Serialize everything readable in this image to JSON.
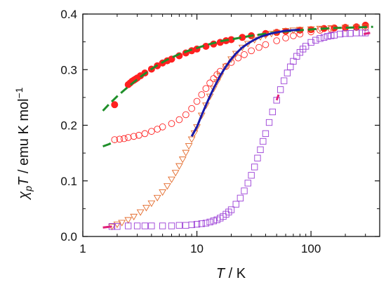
{
  "chart_data": {
    "type": "scatter",
    "title": "",
    "xlabel": {
      "var": "T",
      "unit": " / K"
    },
    "ylabel": {
      "var_main": "χ",
      "var_sub": "p",
      "var_tail": "T",
      "unit": " / emu K mol",
      "unit_sup": "−1"
    },
    "x_scale": "log",
    "xlim": [
      1,
      400
    ],
    "ylim": [
      0.0,
      0.4
    ],
    "x_ticks": [
      1,
      10,
      100
    ],
    "x_tick_labels": [
      "1",
      "10",
      "100"
    ],
    "y_ticks": [
      0.0,
      0.1,
      0.2,
      0.3,
      0.4
    ],
    "y_tick_labels": [
      "0.0",
      "0.1",
      "0.2",
      "0.3",
      "0.4"
    ],
    "grid": false,
    "legend": "none",
    "series": [
      {
        "marker": "filled-circle",
        "color": "#ff2020",
        "x": [
          1.9,
          2.5,
          2.6,
          2.7,
          2.8,
          2.9,
          3.0,
          3.2,
          3.5,
          4,
          4.5,
          5,
          5.5,
          6,
          7,
          8,
          9,
          10,
          12,
          14,
          16,
          18,
          20,
          25,
          30,
          40,
          50,
          60,
          80,
          100,
          130,
          160,
          200,
          250,
          300
        ],
        "y": [
          0.237,
          0.273,
          0.276,
          0.279,
          0.281,
          0.283,
          0.285,
          0.289,
          0.294,
          0.301,
          0.307,
          0.312,
          0.316,
          0.319,
          0.325,
          0.33,
          0.334,
          0.337,
          0.342,
          0.346,
          0.349,
          0.352,
          0.354,
          0.358,
          0.361,
          0.365,
          0.367,
          0.369,
          0.371,
          0.372,
          0.374,
          0.375,
          0.376,
          0.377,
          0.38
        ]
      },
      {
        "marker": "open-circle",
        "color": "#ff2020",
        "x": [
          1.9,
          2.1,
          2.3,
          2.5,
          2.8,
          3.1,
          3.5,
          4,
          4.5,
          5,
          6,
          7,
          8,
          9,
          10,
          11,
          12,
          13,
          14,
          15,
          16,
          18,
          20,
          23,
          26,
          30,
          35,
          40,
          50,
          60,
          70,
          80,
          100,
          120,
          150,
          200,
          250,
          300
        ],
        "y": [
          0.174,
          0.175,
          0.176,
          0.178,
          0.18,
          0.182,
          0.185,
          0.189,
          0.193,
          0.197,
          0.203,
          0.21,
          0.219,
          0.23,
          0.243,
          0.255,
          0.266,
          0.276,
          0.284,
          0.291,
          0.297,
          0.306,
          0.313,
          0.321,
          0.327,
          0.334,
          0.34,
          0.345,
          0.352,
          0.357,
          0.361,
          0.364,
          0.368,
          0.371,
          0.373,
          0.375,
          0.376,
          0.376
        ]
      },
      {
        "marker": "open-triangle-down",
        "color": "#e36a2a",
        "x": [
          1.8,
          2,
          2.2,
          2.5,
          2.8,
          3.2,
          3.6,
          4,
          4.5,
          5,
          5.5,
          6,
          6.5,
          7,
          7.5,
          8,
          8.5,
          9,
          9.5,
          10,
          11,
          12,
          13,
          14,
          15,
          16,
          18,
          20,
          22,
          25,
          28,
          32,
          36,
          40,
          45,
          50,
          60,
          70,
          80,
          100,
          120,
          150,
          200,
          250,
          300
        ],
        "y": [
          0.018,
          0.022,
          0.025,
          0.03,
          0.036,
          0.044,
          0.052,
          0.06,
          0.07,
          0.08,
          0.091,
          0.103,
          0.115,
          0.127,
          0.139,
          0.151,
          0.163,
          0.175,
          0.186,
          0.197,
          0.218,
          0.236,
          0.252,
          0.266,
          0.278,
          0.289,
          0.306,
          0.319,
          0.329,
          0.34,
          0.347,
          0.354,
          0.359,
          0.362,
          0.365,
          0.367,
          0.37,
          0.371,
          0.372,
          0.373,
          0.374,
          0.375,
          0.376,
          0.376,
          0.377
        ]
      },
      {
        "marker": "open-square",
        "color": "#9b3fd6",
        "x": [
          1.8,
          2,
          2.5,
          3,
          3.5,
          4,
          5,
          6,
          7,
          8,
          9,
          10,
          11,
          12,
          13,
          14,
          15,
          16,
          17,
          18,
          19,
          20,
          22,
          24,
          26,
          28,
          30,
          32,
          34,
          36,
          38,
          40,
          43,
          46,
          50,
          54,
          58,
          62,
          66,
          70,
          75,
          80,
          85,
          90,
          100,
          110,
          120,
          130,
          140,
          150,
          160,
          180,
          200,
          220,
          250,
          280,
          300
        ],
        "y": [
          0.018,
          0.018,
          0.019,
          0.019,
          0.019,
          0.019,
          0.019,
          0.019,
          0.02,
          0.02,
          0.021,
          0.022,
          0.023,
          0.024,
          0.026,
          0.028,
          0.03,
          0.033,
          0.036,
          0.04,
          0.044,
          0.048,
          0.058,
          0.069,
          0.082,
          0.096,
          0.11,
          0.125,
          0.141,
          0.156,
          0.171,
          0.185,
          0.205,
          0.224,
          0.245,
          0.264,
          0.28,
          0.294,
          0.305,
          0.315,
          0.324,
          0.331,
          0.337,
          0.342,
          0.349,
          0.353,
          0.356,
          0.358,
          0.36,
          0.361,
          0.362,
          0.364,
          0.365,
          0.365,
          0.366,
          0.366,
          0.366
        ]
      }
    ],
    "fits": [
      {
        "style": "dashed",
        "color": "#1f8f2a",
        "x": [
          1.5,
          1.7,
          2.0,
          2.3,
          2.7,
          3.2,
          3.8,
          4.5,
          5.5,
          7,
          9,
          12,
          16,
          22,
          30,
          45,
          70,
          110,
          170,
          260,
          350
        ],
        "y": [
          0.226,
          0.238,
          0.252,
          0.263,
          0.275,
          0.287,
          0.298,
          0.308,
          0.318,
          0.328,
          0.336,
          0.344,
          0.351,
          0.356,
          0.361,
          0.366,
          0.37,
          0.373,
          0.375,
          0.376,
          0.377
        ]
      },
      {
        "style": "dashed",
        "color": "#1f8f2a",
        "x": [
          1.5,
          1.7,
          1.9
        ],
        "y": [
          0.162,
          0.166,
          0.171
        ]
      },
      {
        "style": "solid",
        "color": "#1a1aa8",
        "x": [
          9,
          10,
          11,
          12,
          13,
          14,
          15,
          16,
          18,
          20,
          22,
          25,
          28,
          32,
          36,
          40,
          45,
          50,
          60,
          70,
          80
        ],
        "y": [
          0.18,
          0.197,
          0.218,
          0.236,
          0.252,
          0.266,
          0.278,
          0.289,
          0.306,
          0.319,
          0.329,
          0.34,
          0.347,
          0.354,
          0.359,
          0.362,
          0.365,
          0.367,
          0.37,
          0.371,
          0.372
        ]
      },
      {
        "style": "solid",
        "color": "#e0207a",
        "x": [
          1.5,
          1.8
        ],
        "y": [
          0.016,
          0.018
        ]
      },
      {
        "style": "solid",
        "color": "#e0207a",
        "x": [
          50,
          52
        ],
        "y": [
          0.245,
          0.255
        ]
      },
      {
        "style": "solid",
        "color": "#e0207a",
        "x": [
          290,
          330
        ],
        "y": [
          0.364,
          0.366
        ]
      }
    ]
  }
}
